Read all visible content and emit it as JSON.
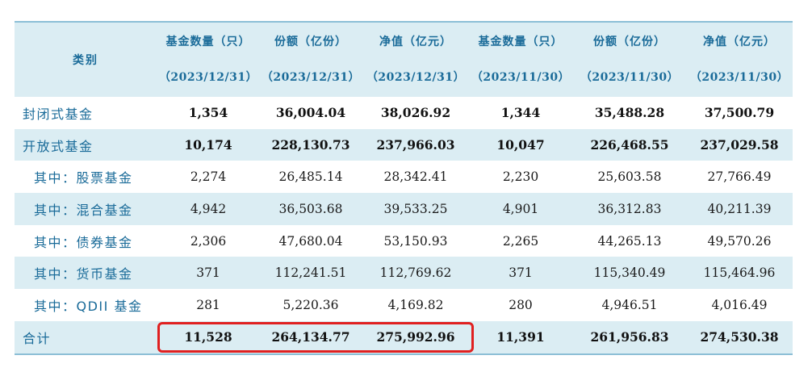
{
  "headers": {
    "category": "类别",
    "columns": [
      {
        "label": "基金数量（只）",
        "date": "（2023/12/31）"
      },
      {
        "label": "份额（亿份）",
        "date": "（2023/12/31）"
      },
      {
        "label": "净值（亿元）",
        "date": "（2023/12/31）"
      },
      {
        "label": "基金数量（只）",
        "date": "（2023/11/30）"
      },
      {
        "label": "份额（亿份）",
        "date": "（2023/11/30）"
      },
      {
        "label": "净值（亿元）",
        "date": "（2023/11/30）"
      }
    ]
  },
  "rows": [
    {
      "category": "封闭式基金",
      "values": [
        "1,354",
        "36,004.04",
        "38,026.92",
        "1,344",
        "35,488.28",
        "37,500.79"
      ]
    },
    {
      "category": "开放式基金",
      "values": [
        "10,174",
        "228,130.73",
        "237,966.03",
        "10,047",
        "226,468.55",
        "237,029.58"
      ]
    },
    {
      "category": "其中：股票基金",
      "values": [
        "2,274",
        "26,485.14",
        "28,342.41",
        "2,230",
        "25,603.58",
        "27,766.49"
      ]
    },
    {
      "category": "其中：混合基金",
      "values": [
        "4,942",
        "36,503.68",
        "39,533.25",
        "4,901",
        "36,312.83",
        "40,211.39"
      ]
    },
    {
      "category": "其中：债券基金",
      "values": [
        "2,306",
        "47,680.04",
        "53,150.93",
        "2,265",
        "44,265.13",
        "49,570.26"
      ]
    },
    {
      "category": "其中：货币基金",
      "values": [
        "371",
        "112,241.51",
        "112,769.62",
        "371",
        "115,340.49",
        "115,464.96"
      ]
    },
    {
      "category": "其中：QDII 基金",
      "values": [
        "281",
        "5,220.36",
        "4,169.82",
        "280",
        "4,946.51",
        "4,016.49"
      ]
    },
    {
      "category": "合计",
      "values": [
        "11,528",
        "264,134.77",
        "275,992.96",
        "11,391",
        "261,956.83",
        "274,530.38"
      ]
    }
  ],
  "colors": {
    "header_text": "#1a6b99",
    "stripe": "#dbedf3",
    "highlight_border": "#e02020"
  }
}
